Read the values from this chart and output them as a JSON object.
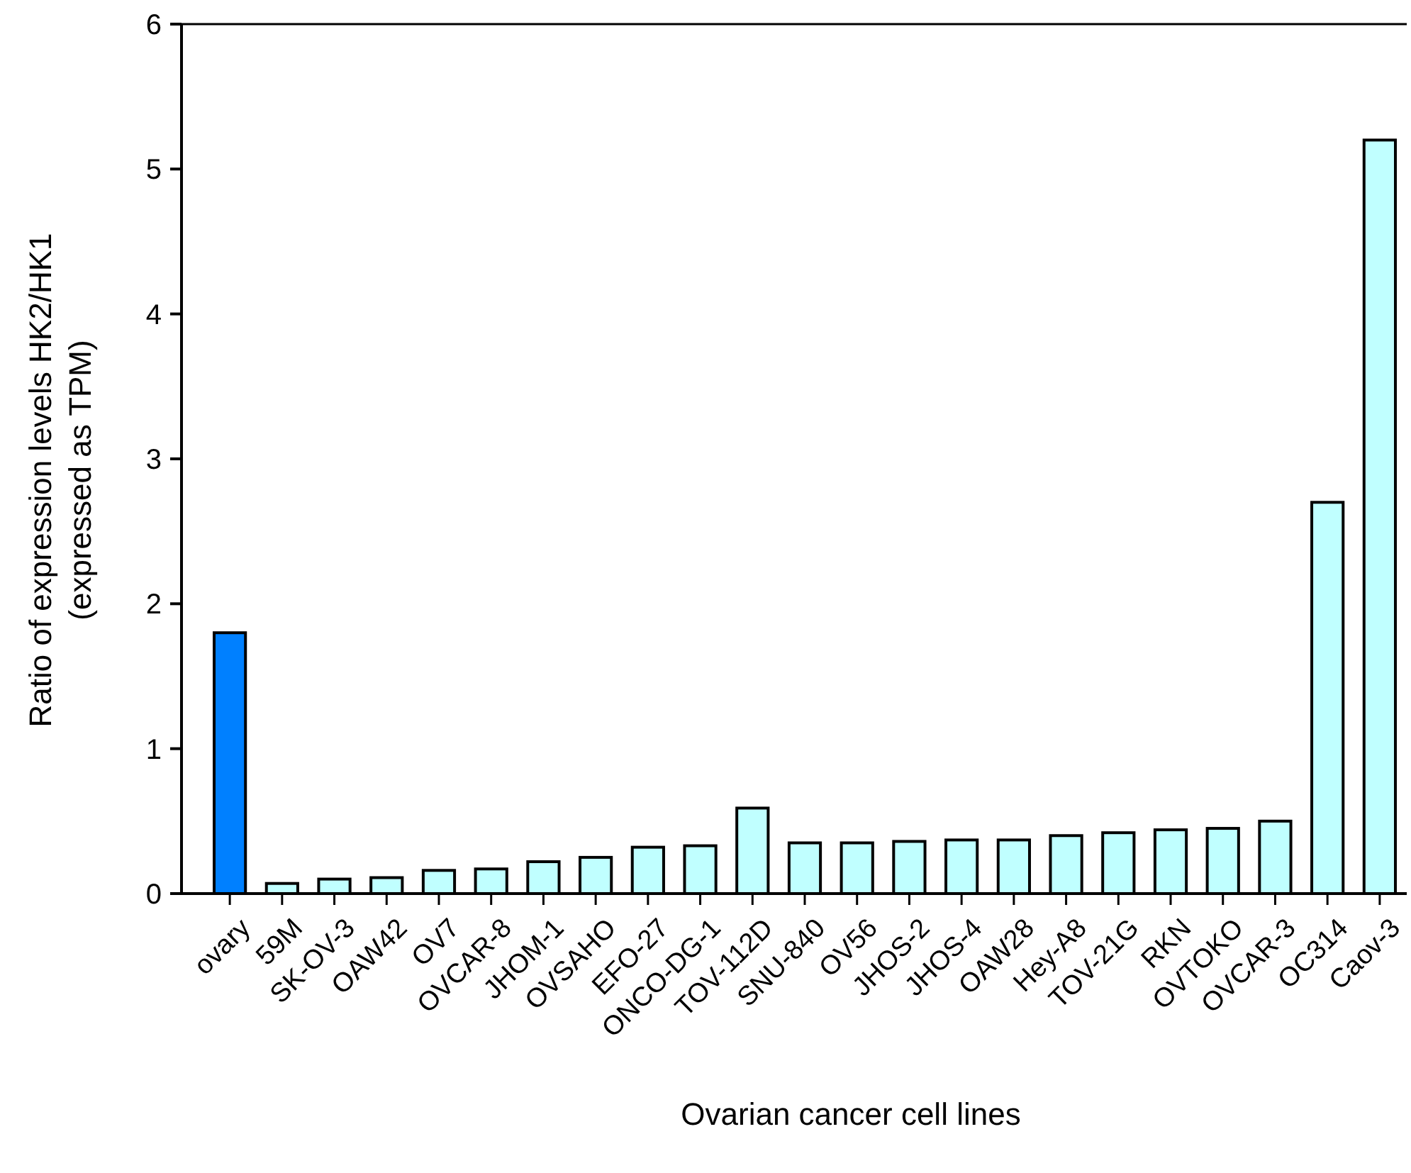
{
  "chart_data": {
    "type": "bar",
    "xlabel": "Ovarian cancer cell lines",
    "ylabel": "Ratio of expression levels HK2/HK1\n(expressed as TPM)",
    "categories": [
      "ovary",
      "59M",
      "SK-OV-3",
      "OAW42",
      "OV7",
      "OVCAR-8",
      "JHOM-1",
      "OVSAHO",
      "EFO-27",
      "ONCO-DG-1",
      "TOV-112D",
      "SNU-840",
      "OV56",
      "JHOS-2",
      "JHOS-4",
      "OAW28",
      "Hey-A8",
      "TOV-21G",
      "RKN",
      "OVTOKO",
      "OVCAR-3",
      "OC314",
      "Caov-3"
    ],
    "values": [
      1.8,
      0.07,
      0.1,
      0.11,
      0.16,
      0.17,
      0.22,
      0.25,
      0.32,
      0.33,
      0.59,
      0.35,
      0.35,
      0.36,
      0.37,
      0.37,
      0.4,
      0.42,
      0.44,
      0.45,
      0.5,
      2.7,
      5.2
    ],
    "colors": [
      "#0080ff",
      "#c0ffff",
      "#c0ffff",
      "#c0ffff",
      "#c0ffff",
      "#c0ffff",
      "#c0ffff",
      "#c0ffff",
      "#c0ffff",
      "#c0ffff",
      "#c0ffff",
      "#c0ffff",
      "#c0ffff",
      "#c0ffff",
      "#c0ffff",
      "#c0ffff",
      "#c0ffff",
      "#c0ffff",
      "#c0ffff",
      "#c0ffff",
      "#c0ffff",
      "#c0ffff",
      "#c0ffff"
    ],
    "ylim": [
      0,
      6
    ],
    "yticks": [
      0,
      1,
      2,
      3,
      4,
      5,
      6
    ]
  }
}
